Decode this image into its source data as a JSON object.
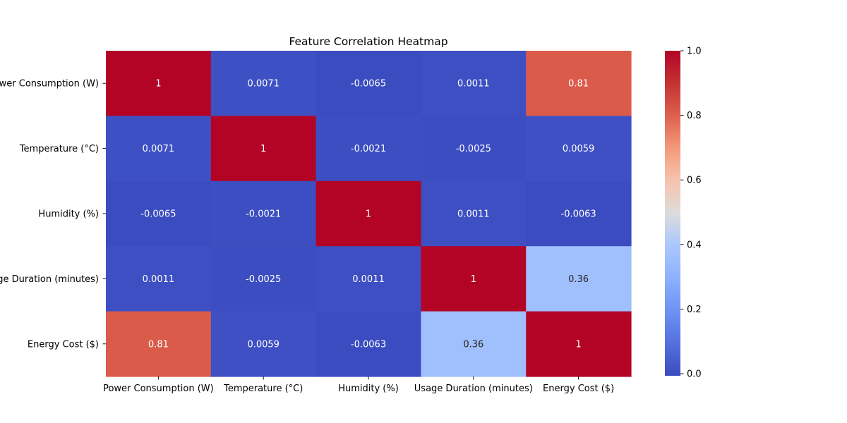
{
  "chart_data": {
    "type": "heatmap",
    "title": "Feature Correlation Heatmap",
    "xlabel": "",
    "ylabel": "",
    "x_categories": [
      "Power Consumption (W)",
      "Temperature (°C)",
      "Humidity (%)",
      "Usage Duration (minutes)",
      "Energy Cost ($)"
    ],
    "y_categories": [
      "Power Consumption (W)",
      "Temperature (°C)",
      "Humidity (%)",
      "Usage Duration (minutes)",
      "Energy Cost ($)"
    ],
    "values": [
      [
        1,
        0.0071,
        -0.0065,
        0.0011,
        0.81
      ],
      [
        0.0071,
        1,
        -0.0021,
        -0.0025,
        0.0059
      ],
      [
        -0.0065,
        -0.0021,
        1,
        0.0011,
        -0.0063
      ],
      [
        0.0011,
        -0.0025,
        0.0011,
        1,
        0.36
      ],
      [
        0.81,
        0.0059,
        -0.0063,
        0.36,
        1
      ]
    ],
    "cell_labels": [
      [
        "1",
        "0.0071",
        "-0.0065",
        "0.0011",
        "0.81"
      ],
      [
        "0.0071",
        "1",
        "-0.0021",
        "-0.0025",
        "0.0059"
      ],
      [
        "-0.0065",
        "-0.0021",
        "1",
        "0.0011",
        "-0.0063"
      ],
      [
        "0.0011",
        "-0.0025",
        "0.0011",
        "1",
        "0.36"
      ],
      [
        "0.81",
        "0.0059",
        "-0.0063",
        "0.36",
        "1"
      ]
    ],
    "colormap": "coolwarm",
    "color_range": [
      -0.0065,
      1
    ],
    "colorbar_ticks": [
      0.0,
      0.2,
      0.4,
      0.6,
      0.8,
      1.0
    ],
    "colorbar_tick_labels": [
      "0.0",
      "0.2",
      "0.4",
      "0.6",
      "0.8",
      "1.0"
    ],
    "grid": false,
    "legend": "colorbar-right"
  }
}
